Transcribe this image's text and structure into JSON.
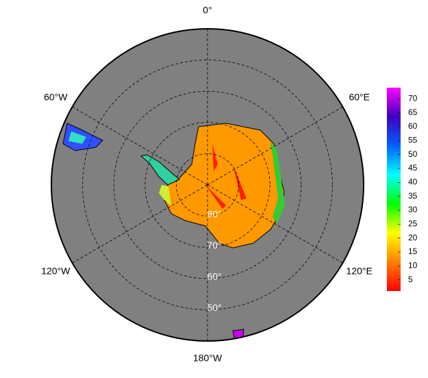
{
  "map": {
    "projection": "south-polar-stereographic",
    "radial_lim": [
      90,
      40
    ],
    "longitudes": [
      {
        "value": 0,
        "label": "0°"
      },
      {
        "value": 60,
        "label": "60°E"
      },
      {
        "value": 120,
        "label": "120°E"
      },
      {
        "value": 180,
        "label": "180°W"
      },
      {
        "value": -120,
        "label": "120°W"
      },
      {
        "value": -60,
        "label": "60°W"
      }
    ],
    "latitudes": [
      {
        "value": 80,
        "label": "80°"
      },
      {
        "value": 70,
        "label": "70°"
      },
      {
        "value": 60,
        "label": "60°"
      },
      {
        "value": 50,
        "label": "50°"
      }
    ],
    "colorbar": {
      "lim": [
        1,
        74
      ],
      "ticks": [
        5,
        10,
        15,
        20,
        25,
        30,
        35,
        40,
        45,
        50,
        55,
        60,
        65,
        70
      ],
      "colors": [
        "#ff0000",
        "#ff8000",
        "#ffff00",
        "#00ff00",
        "#00ffff",
        "#0060ff",
        "#4000c0",
        "#ff00ff"
      ]
    }
  }
}
